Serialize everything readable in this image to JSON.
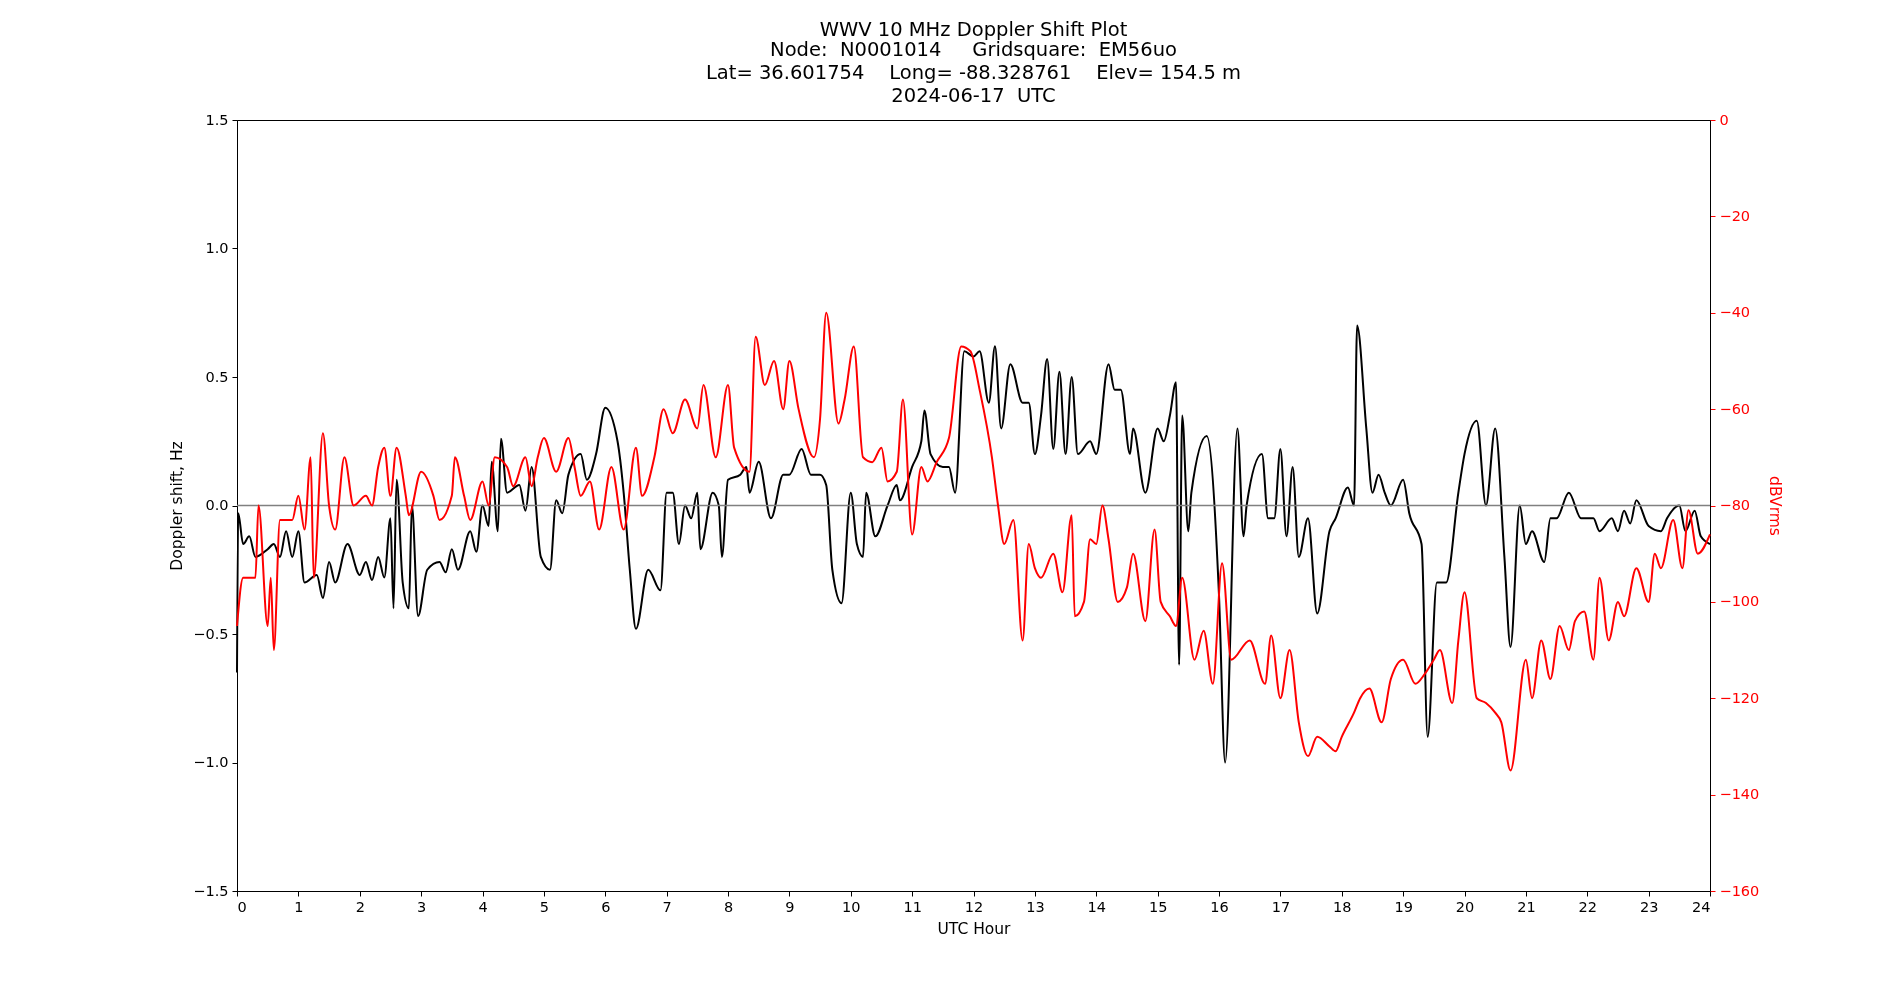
{
  "chart_data": {
    "type": "line",
    "title": "WWV 10 MHz Doppler Shift Plot",
    "subtitle": "Node:  N0001014     Gridsquare:  EM56uo\nLat= 36.601754    Long= -88.328761    Elev= 154.5 m\n2024-06-17  UTC",
    "xlabel": "UTC Hour",
    "ylabel": "Doppler shift, Hz",
    "y2label": "dBVrms",
    "xlim": [
      0,
      24
    ],
    "xticks": [
      0,
      1,
      2,
      3,
      4,
      5,
      6,
      7,
      8,
      9,
      10,
      11,
      12,
      13,
      14,
      15,
      16,
      17,
      18,
      19,
      20,
      21,
      22,
      23,
      24
    ],
    "ylim": [
      -1.5,
      1.5
    ],
    "yticks": [
      {
        "value": -1.5,
        "label": "−1.5"
      },
      {
        "value": -1,
        "label": "−1.0"
      },
      {
        "value": -0.5,
        "label": "−0.5"
      },
      {
        "value": 0,
        "label": "0.0"
      },
      {
        "value": 0.5,
        "label": "0.5"
      },
      {
        "value": 1,
        "label": "1.0"
      },
      {
        "value": 1.5,
        "label": "1.5"
      }
    ],
    "y2lim": [
      -160,
      0
    ],
    "y2ticks": [
      {
        "value": -160,
        "label": "−160"
      },
      {
        "value": -140,
        "label": "−140"
      },
      {
        "value": -120,
        "label": "−120"
      },
      {
        "value": -100,
        "label": "−100"
      },
      {
        "value": -80,
        "label": "−80"
      },
      {
        "value": -60,
        "label": "−60"
      },
      {
        "value": -40,
        "label": "−40"
      },
      {
        "value": -20,
        "label": "−20"
      },
      0
    ],
    "ref_lines": [
      {
        "axis": "y",
        "value": 0,
        "color": "#808080"
      }
    ],
    "series": [
      {
        "color": "#000000",
        "x": [
          0,
          0.02,
          0.1,
          0.2,
          0.3,
          0.5,
          0.6,
          0.7,
          0.8,
          0.9,
          1.0,
          1.1,
          1.3,
          1.4,
          1.5,
          1.6,
          1.8,
          2.0,
          2.1,
          2.2,
          2.3,
          2.4,
          2.5,
          2.55,
          2.6,
          2.7,
          2.8,
          2.85,
          2.95,
          3.1,
          3.3,
          3.4,
          3.5,
          3.6,
          3.8,
          3.9,
          4.0,
          4.1,
          4.15,
          4.25,
          4.3,
          4.4,
          4.6,
          4.7,
          4.8,
          4.95,
          5.1,
          5.2,
          5.3,
          5.4,
          5.6,
          5.7,
          5.85,
          6.0,
          6.2,
          6.3,
          6.4,
          6.5,
          6.7,
          6.9,
          7.0,
          7.1,
          7.2,
          7.3,
          7.4,
          7.5,
          7.55,
          7.75,
          7.85,
          7.9,
          8.0,
          8.2,
          8.3,
          8.35,
          8.5,
          8.7,
          8.9,
          9.0,
          9.2,
          9.35,
          9.5,
          9.6,
          9.7,
          9.85,
          10.0,
          10.1,
          10.2,
          10.25,
          10.4,
          10.6,
          10.75,
          10.8,
          11.0,
          11.15,
          11.2,
          11.3,
          11.5,
          11.6,
          11.7,
          11.85,
          12.0,
          12.1,
          12.25,
          12.35,
          12.45,
          12.6,
          12.8,
          12.9,
          13.0,
          13.1,
          13.2,
          13.3,
          13.4,
          13.5,
          13.6,
          13.7,
          13.9,
          14.0,
          14.2,
          14.3,
          14.4,
          14.55,
          14.6,
          14.8,
          15.0,
          15.1,
          15.2,
          15.3,
          15.35,
          15.4,
          15.5,
          15.55,
          15.8,
          16.0,
          16.1,
          16.3,
          16.4,
          16.45,
          16.7,
          16.8,
          16.9,
          17.0,
          17.1,
          17.2,
          17.3,
          17.45,
          17.6,
          17.8,
          17.9,
          18.1,
          18.2,
          18.25,
          18.4,
          18.5,
          18.6,
          18.7,
          18.8,
          19.0,
          19.1,
          19.3,
          19.4,
          19.55,
          19.7,
          19.9,
          20.0,
          20.2,
          20.35,
          20.5,
          20.65,
          20.75,
          20.9,
          21.0,
          21.1,
          21.3,
          21.4,
          21.5,
          21.7,
          21.9,
          22.1,
          22.2,
          22.4,
          22.5,
          22.6,
          22.7,
          22.8,
          23.0,
          23.2,
          23.3,
          23.5,
          23.6,
          23.75,
          23.85,
          24.0
        ],
        "values": [
          -0.65,
          -0.03,
          -0.15,
          -0.12,
          -0.2,
          -0.17,
          -0.15,
          -0.2,
          -0.1,
          -0.2,
          -0.1,
          -0.3,
          -0.27,
          -0.36,
          -0.22,
          -0.3,
          -0.15,
          -0.27,
          -0.22,
          -0.29,
          -0.2,
          -0.28,
          -0.05,
          -0.4,
          0.1,
          -0.3,
          -0.4,
          0.0,
          -0.43,
          -0.25,
          -0.22,
          -0.26,
          -0.17,
          -0.25,
          -0.1,
          -0.18,
          0.0,
          -0.08,
          0.17,
          -0.1,
          0.26,
          0.05,
          0.08,
          -0.02,
          0.15,
          -0.2,
          -0.25,
          0.02,
          -0.03,
          0.12,
          0.2,
          0.1,
          0.2,
          0.38,
          0.25,
          0.05,
          -0.25,
          -0.48,
          -0.25,
          -0.33,
          0.05,
          0.05,
          -0.15,
          0.0,
          -0.05,
          0.05,
          -0.17,
          0.05,
          0.0,
          -0.2,
          0.1,
          0.12,
          0.15,
          0.05,
          0.17,
          -0.05,
          0.12,
          0.12,
          0.22,
          0.12,
          0.12,
          0.08,
          -0.25,
          -0.38,
          0.05,
          -0.15,
          -0.2,
          0.05,
          -0.12,
          0.0,
          0.08,
          0.02,
          0.15,
          0.25,
          0.37,
          0.2,
          0.15,
          0.15,
          0.05,
          0.6,
          0.58,
          0.6,
          0.4,
          0.62,
          0.3,
          0.55,
          0.4,
          0.4,
          0.2,
          0.35,
          0.57,
          0.22,
          0.52,
          0.2,
          0.5,
          0.2,
          0.25,
          0.2,
          0.55,
          0.45,
          0.45,
          0.2,
          0.3,
          0.05,
          0.3,
          0.25,
          0.35,
          0.48,
          -0.62,
          0.35,
          -0.1,
          0.05,
          0.27,
          -0.35,
          -1.0,
          0.3,
          -0.12,
          0.0,
          0.2,
          -0.05,
          -0.05,
          0.22,
          -0.12,
          0.15,
          -0.2,
          -0.05,
          -0.42,
          -0.1,
          -0.05,
          0.07,
          0.0,
          0.7,
          0.3,
          0.05,
          0.12,
          0.05,
          0.0,
          0.1,
          -0.03,
          -0.15,
          -0.9,
          -0.3,
          -0.3,
          0.05,
          0.2,
          0.33,
          0.0,
          0.3,
          -0.2,
          -0.55,
          0.0,
          -0.15,
          -0.1,
          -0.22,
          -0.05,
          -0.05,
          0.05,
          -0.05,
          -0.05,
          -0.1,
          -0.05,
          -0.1,
          -0.02,
          -0.07,
          0.02,
          -0.08,
          -0.1,
          -0.05,
          0.0,
          -0.1,
          -0.02,
          -0.12,
          -0.15
        ]
      },
      {
        "color": "#ff0000",
        "axis": "y2",
        "x": [
          0,
          0.1,
          0.3,
          0.35,
          0.5,
          0.55,
          0.6,
          0.7,
          0.9,
          1.0,
          1.1,
          1.2,
          1.25,
          1.4,
          1.5,
          1.6,
          1.75,
          1.9,
          2.1,
          2.2,
          2.3,
          2.4,
          2.5,
          2.6,
          2.75,
          2.8,
          3.0,
          3.2,
          3.3,
          3.5,
          3.55,
          3.7,
          3.8,
          4.0,
          4.1,
          4.2,
          4.4,
          4.5,
          4.7,
          4.8,
          4.9,
          5.0,
          5.2,
          5.4,
          5.5,
          5.6,
          5.75,
          5.9,
          6.1,
          6.3,
          6.5,
          6.6,
          6.8,
          6.95,
          7.1,
          7.3,
          7.5,
          7.6,
          7.8,
          8.0,
          8.1,
          8.35,
          8.45,
          8.6,
          8.75,
          8.9,
          9.0,
          9.15,
          9.4,
          9.5,
          9.6,
          9.8,
          9.9,
          10.05,
          10.2,
          10.35,
          10.5,
          10.6,
          10.75,
          10.85,
          11.0,
          11.15,
          11.25,
          11.4,
          11.6,
          11.8,
          11.95,
          12.1,
          12.3,
          12.4,
          12.5,
          12.65,
          12.8,
          12.9,
          13.0,
          13.1,
          13.3,
          13.45,
          13.6,
          13.65,
          13.8,
          13.9,
          14.0,
          14.1,
          14.2,
          14.35,
          14.5,
          14.6,
          14.8,
          14.95,
          15.05,
          15.2,
          15.3,
          15.4,
          15.6,
          15.75,
          15.9,
          16.05,
          16.2,
          16.5,
          16.75,
          16.85,
          17.0,
          17.15,
          17.3,
          17.45,
          17.6,
          17.8,
          17.9,
          18.0,
          18.2,
          18.3,
          18.45,
          18.65,
          18.8,
          19.0,
          19.2,
          19.35,
          19.5,
          19.6,
          19.8,
          19.9,
          20.0,
          20.2,
          20.35,
          20.5,
          20.6,
          20.75,
          21.0,
          21.1,
          21.25,
          21.4,
          21.55,
          21.7,
          21.8,
          21.95,
          22.1,
          22.2,
          22.35,
          22.5,
          22.6,
          22.8,
          23.0,
          23.1,
          23.2,
          23.4,
          23.55,
          23.65,
          23.8,
          24.0
        ],
        "values": [
          -105,
          -95,
          -95,
          -80,
          -105,
          -95,
          -110,
          -83,
          -83,
          -78,
          -85,
          -70,
          -95,
          -65,
          -80,
          -85,
          -70,
          -80,
          -78,
          -80,
          -72,
          -68,
          -78,
          -68,
          -78,
          -82,
          -73,
          -78,
          -83,
          -78,
          -70,
          -78,
          -83,
          -75,
          -80,
          -70,
          -72,
          -76,
          -70,
          -76,
          -70,
          -66,
          -73,
          -66,
          -72,
          -78,
          -75,
          -85,
          -72,
          -85,
          -68,
          -78,
          -70,
          -60,
          -65,
          -58,
          -64,
          -55,
          -70,
          -55,
          -68,
          -73,
          -45,
          -55,
          -50,
          -60,
          -50,
          -60,
          -70,
          -62,
          -40,
          -63,
          -58,
          -47,
          -70,
          -71,
          -68,
          -75,
          -73,
          -58,
          -86,
          -72,
          -75,
          -71,
          -66,
          -47,
          -48,
          -56,
          -70,
          -80,
          -88,
          -83,
          -108,
          -88,
          -93,
          -95,
          -90,
          -98,
          -82,
          -103,
          -100,
          -87,
          -88,
          -80,
          -87,
          -100,
          -97,
          -90,
          -104,
          -85,
          -100,
          -103,
          -105,
          -95,
          -112,
          -106,
          -117,
          -92,
          -112,
          -108,
          -117,
          -107,
          -120,
          -110,
          -125,
          -132,
          -128,
          -130,
          -131,
          -128,
          -123,
          -120,
          -118,
          -125,
          -116,
          -112,
          -117,
          -115,
          -112,
          -110,
          -121,
          -108,
          -98,
          -120,
          -121,
          -123,
          -125,
          -135,
          -112,
          -120,
          -108,
          -116,
          -105,
          -110,
          -104,
          -102,
          -112,
          -95,
          -108,
          -100,
          -103,
          -93,
          -100,
          -90,
          -93,
          -83,
          -93,
          -81,
          -90,
          -86
        ]
      }
    ]
  }
}
